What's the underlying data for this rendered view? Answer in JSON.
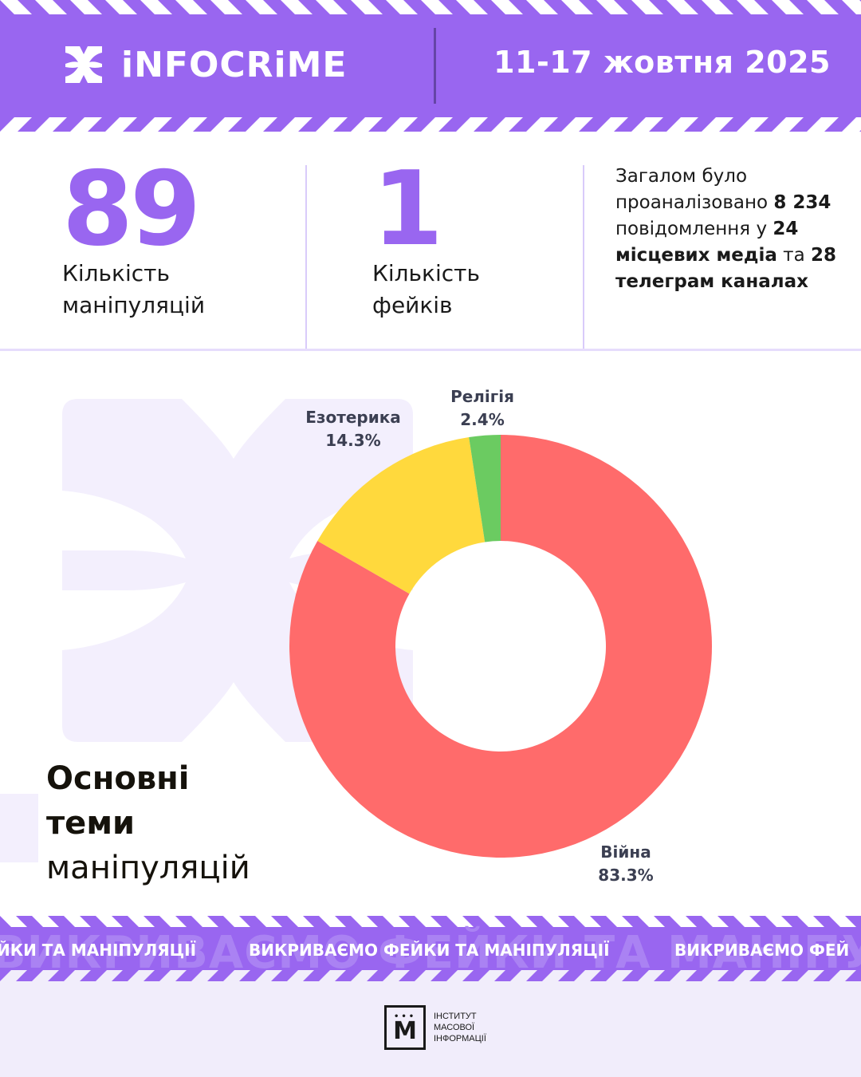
{
  "header": {
    "brand": "iNFOCRiME",
    "date_range": "11-17 жовтня 2025"
  },
  "stats": {
    "manipulations": {
      "value": "89",
      "label_line1": "Кількість",
      "label_line2": "маніпуляцій"
    },
    "fakes": {
      "value": "1",
      "label_line1": "Кількість",
      "label_line2": "фейків"
    },
    "summary": {
      "part1": "Загалом було проаналізовано ",
      "messages": "8 234",
      "part2": " повідомлення у ",
      "media": "24 місцевих медіа",
      "part3": " та ",
      "telegram": "28 телеграм каналах"
    }
  },
  "section": {
    "title_line1": "Основні",
    "title_line2": "теми",
    "title_line3": "маніпуляцій"
  },
  "chart_data": {
    "type": "pie",
    "donut": true,
    "slices": [
      {
        "label": "Війна",
        "value": 83.3,
        "value_label": "83.3%",
        "color": "#ff6b6b"
      },
      {
        "label": "Езотерика",
        "value": 14.3,
        "value_label": "14.3%",
        "color": "#ffd93d"
      },
      {
        "label": "Релігія",
        "value": 2.4,
        "value_label": "2.4%",
        "color": "#6bcb61"
      }
    ]
  },
  "band": {
    "slogan": "ВИКРИВАЄМО ФЕЙКИ ТА МАНІПУЛЯЦІЇ",
    "slogan_tail": "ЙКИ ТА МАНІПУЛЯЦІЇ",
    "slogan_head": "ВИКРИВАЄМО ФЕЙ",
    "ghost": "ВИКРИВАЄМО ФЕЙКИ ТА МАНІПУЛЯЦІЇ"
  },
  "footer": {
    "org_line1": "ІНСТИТУТ",
    "org_line2": "МАСОВОЇ",
    "org_line3": "ІНФОРМАЦІЇ"
  },
  "colors": {
    "accent": "#9966f0",
    "light_accent": "#f1edfb"
  }
}
